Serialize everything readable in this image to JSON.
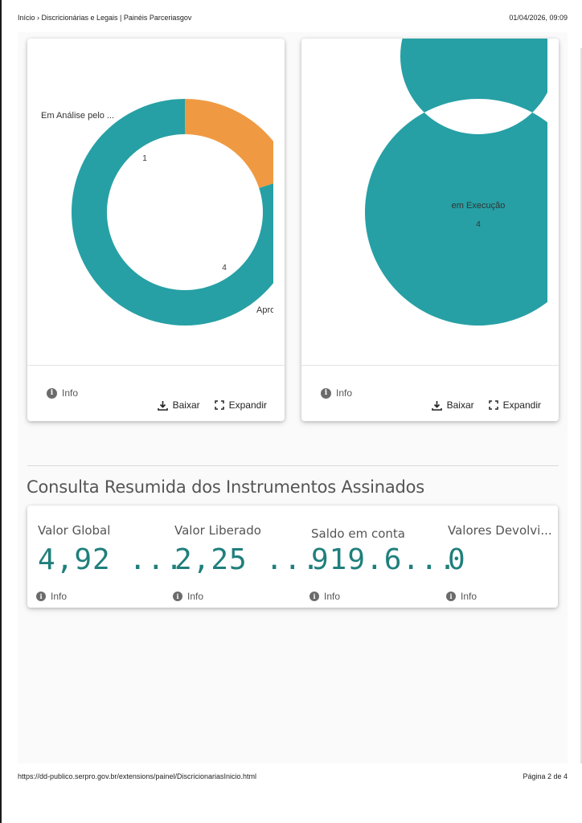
{
  "header": {
    "breadcrumb": "Início › Discricionárias e Legais | Painéis Parceriasgov",
    "datetime": "01/04/2026, 09:09"
  },
  "footer": {
    "url": "https://dd-publico.serpro.gov.br/extensions/painel/DiscricionariasInicio.html",
    "page": "Página 2 de 4"
  },
  "colors": {
    "teal": "#26a0a5",
    "orange": "#ef9a42",
    "kpi_value": "#1f7f7c"
  },
  "chart_data": [
    {
      "type": "pie",
      "donut": true,
      "categories": [
        "Em Análise pelo ...",
        "Apro"
      ],
      "values": [
        1,
        4
      ],
      "colors": [
        "#ef9a42",
        "#26a0a5"
      ]
    },
    {
      "type": "pie",
      "donut": true,
      "categories": [
        "em Execução"
      ],
      "values": [
        4
      ],
      "colors": [
        "#26a0a5"
      ]
    }
  ],
  "cards": {
    "info_label": "Info",
    "download_label": "Baixar",
    "expand_label": "Expandir"
  },
  "section": {
    "title": "Consulta Resumida dos Instrumentos Assinados"
  },
  "kpis": [
    {
      "label": "Valor Global",
      "value": "4,92 ...",
      "info": "Info"
    },
    {
      "label": "Valor Liberado",
      "value": "2,25 ...",
      "info": "Info"
    },
    {
      "label": "Saldo em conta",
      "value": "919.6...",
      "info": "Info"
    },
    {
      "label": "Valores Devolvi...",
      "value": "0",
      "info": "Info"
    }
  ]
}
